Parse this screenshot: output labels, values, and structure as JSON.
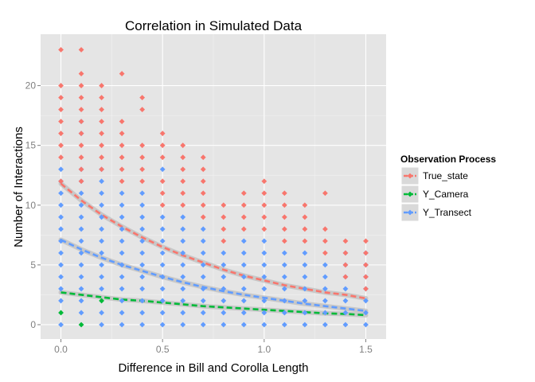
{
  "chart_data": {
    "type": "scatter",
    "title": "Correlation in Simulated Data",
    "xlabel": "Difference in Bill and Corolla Length",
    "ylabel": "Number of Interactions",
    "xlim": [
      -0.1,
      1.6
    ],
    "ylim": [
      -1.2,
      24.3
    ],
    "x_ticks": [
      0.0,
      0.5,
      1.0,
      1.5
    ],
    "x_tick_labels": [
      "0.0",
      "0.5",
      "1.0",
      "1.5"
    ],
    "y_ticks": [
      0,
      5,
      10,
      15,
      20
    ],
    "y_tick_labels": [
      "0",
      "5",
      "10",
      "15",
      "20"
    ],
    "grid": true,
    "legend_position": "right",
    "legend_title": "Observation Process",
    "series": [
      {
        "name": "True_state",
        "color": "#f8766d",
        "points": [
          [
            0.0,
            23
          ],
          [
            0.0,
            20
          ],
          [
            0.0,
            19
          ],
          [
            0.0,
            18
          ],
          [
            0.0,
            17
          ],
          [
            0.0,
            16
          ],
          [
            0.0,
            15
          ],
          [
            0.0,
            14
          ],
          [
            0.0,
            12
          ],
          [
            0.1,
            23
          ],
          [
            0.1,
            21
          ],
          [
            0.1,
            20
          ],
          [
            0.1,
            19
          ],
          [
            0.1,
            18
          ],
          [
            0.1,
            17
          ],
          [
            0.1,
            16
          ],
          [
            0.1,
            15
          ],
          [
            0.1,
            14
          ],
          [
            0.1,
            13
          ],
          [
            0.1,
            12
          ],
          [
            0.2,
            20
          ],
          [
            0.2,
            19
          ],
          [
            0.2,
            18
          ],
          [
            0.2,
            17
          ],
          [
            0.2,
            16
          ],
          [
            0.2,
            15
          ],
          [
            0.2,
            14
          ],
          [
            0.2,
            13
          ],
          [
            0.3,
            21
          ],
          [
            0.3,
            17
          ],
          [
            0.3,
            16
          ],
          [
            0.3,
            15
          ],
          [
            0.3,
            14
          ],
          [
            0.3,
            13
          ],
          [
            0.3,
            12
          ],
          [
            0.4,
            19
          ],
          [
            0.4,
            18
          ],
          [
            0.4,
            15
          ],
          [
            0.4,
            14
          ],
          [
            0.4,
            13
          ],
          [
            0.4,
            12
          ],
          [
            0.5,
            16
          ],
          [
            0.5,
            15
          ],
          [
            0.5,
            14
          ],
          [
            0.5,
            12
          ],
          [
            0.5,
            11
          ],
          [
            0.5,
            10
          ],
          [
            0.6,
            15
          ],
          [
            0.6,
            14
          ],
          [
            0.6,
            13
          ],
          [
            0.6,
            12
          ],
          [
            0.6,
            11
          ],
          [
            0.6,
            10
          ],
          [
            0.7,
            14
          ],
          [
            0.7,
            13
          ],
          [
            0.7,
            12
          ],
          [
            0.7,
            11
          ],
          [
            0.7,
            10
          ],
          [
            0.7,
            9
          ],
          [
            0.8,
            10
          ],
          [
            0.8,
            9
          ],
          [
            0.8,
            8
          ],
          [
            0.8,
            7
          ],
          [
            0.9,
            11
          ],
          [
            0.9,
            10
          ],
          [
            0.9,
            9
          ],
          [
            0.9,
            8
          ],
          [
            1.0,
            12
          ],
          [
            1.0,
            11
          ],
          [
            1.0,
            10
          ],
          [
            1.0,
            9
          ],
          [
            1.0,
            8
          ],
          [
            1.1,
            11
          ],
          [
            1.1,
            10
          ],
          [
            1.1,
            9
          ],
          [
            1.1,
            8
          ],
          [
            1.1,
            7
          ],
          [
            1.2,
            10
          ],
          [
            1.2,
            9
          ],
          [
            1.2,
            8
          ],
          [
            1.2,
            7
          ],
          [
            1.3,
            11
          ],
          [
            1.3,
            8
          ],
          [
            1.3,
            7
          ],
          [
            1.3,
            6
          ],
          [
            1.4,
            7
          ],
          [
            1.4,
            6
          ],
          [
            1.4,
            5
          ],
          [
            1.4,
            4
          ],
          [
            1.5,
            7
          ],
          [
            1.5,
            6
          ],
          [
            1.5,
            5
          ],
          [
            1.5,
            4
          ],
          [
            1.5,
            3
          ]
        ],
        "trend_x": [
          0.0,
          0.1,
          0.2,
          0.3,
          0.4,
          0.5,
          0.6,
          0.7,
          0.8,
          0.9,
          1.0,
          1.1,
          1.2,
          1.3,
          1.4,
          1.5
        ],
        "trend_y": [
          11.8,
          10.4,
          9.2,
          8.2,
          7.3,
          6.5,
          5.8,
          5.2,
          4.6,
          4.1,
          3.7,
          3.3,
          3.0,
          2.7,
          2.5,
          2.2
        ]
      },
      {
        "name": "Y_Camera",
        "color": "#00ba38",
        "points": [
          [
            0.0,
            1
          ],
          [
            0.1,
            0
          ],
          [
            0.2,
            2
          ]
        ],
        "trend_x": [
          0.0,
          0.1,
          0.2,
          0.3,
          0.4,
          0.5,
          0.6,
          0.7,
          0.8,
          0.9,
          1.0,
          1.1,
          1.2,
          1.3,
          1.4,
          1.5
        ],
        "trend_y": [
          2.7,
          2.5,
          2.3,
          2.1,
          2.0,
          1.85,
          1.7,
          1.55,
          1.45,
          1.35,
          1.25,
          1.15,
          1.05,
          0.95,
          0.9,
          0.8
        ]
      },
      {
        "name": "Y_Transect",
        "color": "#619cff",
        "points": [
          [
            0.0,
            13
          ],
          [
            0.0,
            12
          ],
          [
            0.0,
            11
          ],
          [
            0.0,
            10
          ],
          [
            0.0,
            9
          ],
          [
            0.0,
            8
          ],
          [
            0.0,
            7
          ],
          [
            0.0,
            6
          ],
          [
            0.0,
            5
          ],
          [
            0.0,
            4
          ],
          [
            0.0,
            3
          ],
          [
            0.0,
            2
          ],
          [
            0.0,
            0
          ],
          [
            0.1,
            17
          ],
          [
            0.1,
            16
          ],
          [
            0.1,
            13
          ],
          [
            0.1,
            12
          ],
          [
            0.1,
            11
          ],
          [
            0.1,
            10
          ],
          [
            0.1,
            9
          ],
          [
            0.1,
            8
          ],
          [
            0.1,
            7
          ],
          [
            0.1,
            6
          ],
          [
            0.1,
            5
          ],
          [
            0.1,
            4
          ],
          [
            0.1,
            3
          ],
          [
            0.1,
            2
          ],
          [
            0.1,
            1
          ],
          [
            0.2,
            13
          ],
          [
            0.2,
            12
          ],
          [
            0.2,
            11
          ],
          [
            0.2,
            10
          ],
          [
            0.2,
            9
          ],
          [
            0.2,
            8
          ],
          [
            0.2,
            7
          ],
          [
            0.2,
            6
          ],
          [
            0.2,
            5
          ],
          [
            0.2,
            4
          ],
          [
            0.2,
            3
          ],
          [
            0.2,
            1
          ],
          [
            0.2,
            0
          ],
          [
            0.3,
            11
          ],
          [
            0.3,
            10
          ],
          [
            0.3,
            9
          ],
          [
            0.3,
            8
          ],
          [
            0.3,
            7
          ],
          [
            0.3,
            6
          ],
          [
            0.3,
            5
          ],
          [
            0.3,
            4
          ],
          [
            0.3,
            3
          ],
          [
            0.3,
            2
          ],
          [
            0.3,
            1
          ],
          [
            0.3,
            0
          ],
          [
            0.4,
            11
          ],
          [
            0.4,
            10
          ],
          [
            0.4,
            9
          ],
          [
            0.4,
            8
          ],
          [
            0.4,
            7
          ],
          [
            0.4,
            6
          ],
          [
            0.4,
            5
          ],
          [
            0.4,
            4
          ],
          [
            0.4,
            3
          ],
          [
            0.4,
            2
          ],
          [
            0.4,
            1
          ],
          [
            0.4,
            0
          ],
          [
            0.5,
            13
          ],
          [
            0.5,
            9
          ],
          [
            0.5,
            8
          ],
          [
            0.5,
            7
          ],
          [
            0.5,
            6
          ],
          [
            0.5,
            5
          ],
          [
            0.5,
            4
          ],
          [
            0.5,
            3
          ],
          [
            0.5,
            2
          ],
          [
            0.5,
            1
          ],
          [
            0.5,
            0
          ],
          [
            0.6,
            9
          ],
          [
            0.6,
            8
          ],
          [
            0.6,
            7
          ],
          [
            0.6,
            6
          ],
          [
            0.6,
            5
          ],
          [
            0.6,
            4
          ],
          [
            0.6,
            3
          ],
          [
            0.6,
            2
          ],
          [
            0.6,
            1
          ],
          [
            0.6,
            0
          ],
          [
            0.7,
            8
          ],
          [
            0.7,
            7
          ],
          [
            0.7,
            6
          ],
          [
            0.7,
            5
          ],
          [
            0.7,
            4
          ],
          [
            0.7,
            3
          ],
          [
            0.7,
            2
          ],
          [
            0.7,
            1
          ],
          [
            0.7,
            0
          ],
          [
            0.8,
            6
          ],
          [
            0.8,
            5
          ],
          [
            0.8,
            4
          ],
          [
            0.8,
            3
          ],
          [
            0.8,
            2
          ],
          [
            0.8,
            1
          ],
          [
            0.8,
            0
          ],
          [
            0.9,
            7
          ],
          [
            0.9,
            6
          ],
          [
            0.9,
            5
          ],
          [
            0.9,
            4
          ],
          [
            0.9,
            3
          ],
          [
            0.9,
            2
          ],
          [
            0.9,
            1
          ],
          [
            0.9,
            0
          ],
          [
            1.0,
            7
          ],
          [
            1.0,
            6
          ],
          [
            1.0,
            5
          ],
          [
            1.0,
            4
          ],
          [
            1.0,
            3
          ],
          [
            1.0,
            2
          ],
          [
            1.0,
            1
          ],
          [
            1.0,
            0
          ],
          [
            1.1,
            6
          ],
          [
            1.1,
            5
          ],
          [
            1.1,
            4
          ],
          [
            1.1,
            3
          ],
          [
            1.1,
            2
          ],
          [
            1.1,
            1
          ],
          [
            1.1,
            0
          ],
          [
            1.2,
            6
          ],
          [
            1.2,
            5
          ],
          [
            1.2,
            4
          ],
          [
            1.2,
            3
          ],
          [
            1.2,
            2
          ],
          [
            1.2,
            1
          ],
          [
            1.2,
            0
          ],
          [
            1.3,
            5
          ],
          [
            1.3,
            4
          ],
          [
            1.3,
            3
          ],
          [
            1.3,
            2
          ],
          [
            1.3,
            1
          ],
          [
            1.3,
            0
          ],
          [
            1.4,
            6
          ],
          [
            1.4,
            5
          ],
          [
            1.4,
            4
          ],
          [
            1.4,
            3
          ],
          [
            1.4,
            2
          ],
          [
            1.4,
            1
          ],
          [
            1.4,
            0
          ],
          [
            1.5,
            6
          ],
          [
            1.5,
            5
          ],
          [
            1.5,
            4
          ],
          [
            1.5,
            3
          ],
          [
            1.5,
            2
          ],
          [
            1.5,
            1
          ],
          [
            1.5,
            0
          ]
        ],
        "trend_x": [
          0.0,
          0.1,
          0.2,
          0.3,
          0.4,
          0.5,
          0.6,
          0.7,
          0.8,
          0.9,
          1.0,
          1.1,
          1.2,
          1.3,
          1.4,
          1.5
        ],
        "trend_y": [
          7.1,
          6.3,
          5.6,
          5.0,
          4.5,
          4.0,
          3.55,
          3.15,
          2.8,
          2.5,
          2.25,
          2.0,
          1.75,
          1.55,
          1.35,
          1.15
        ]
      }
    ]
  }
}
